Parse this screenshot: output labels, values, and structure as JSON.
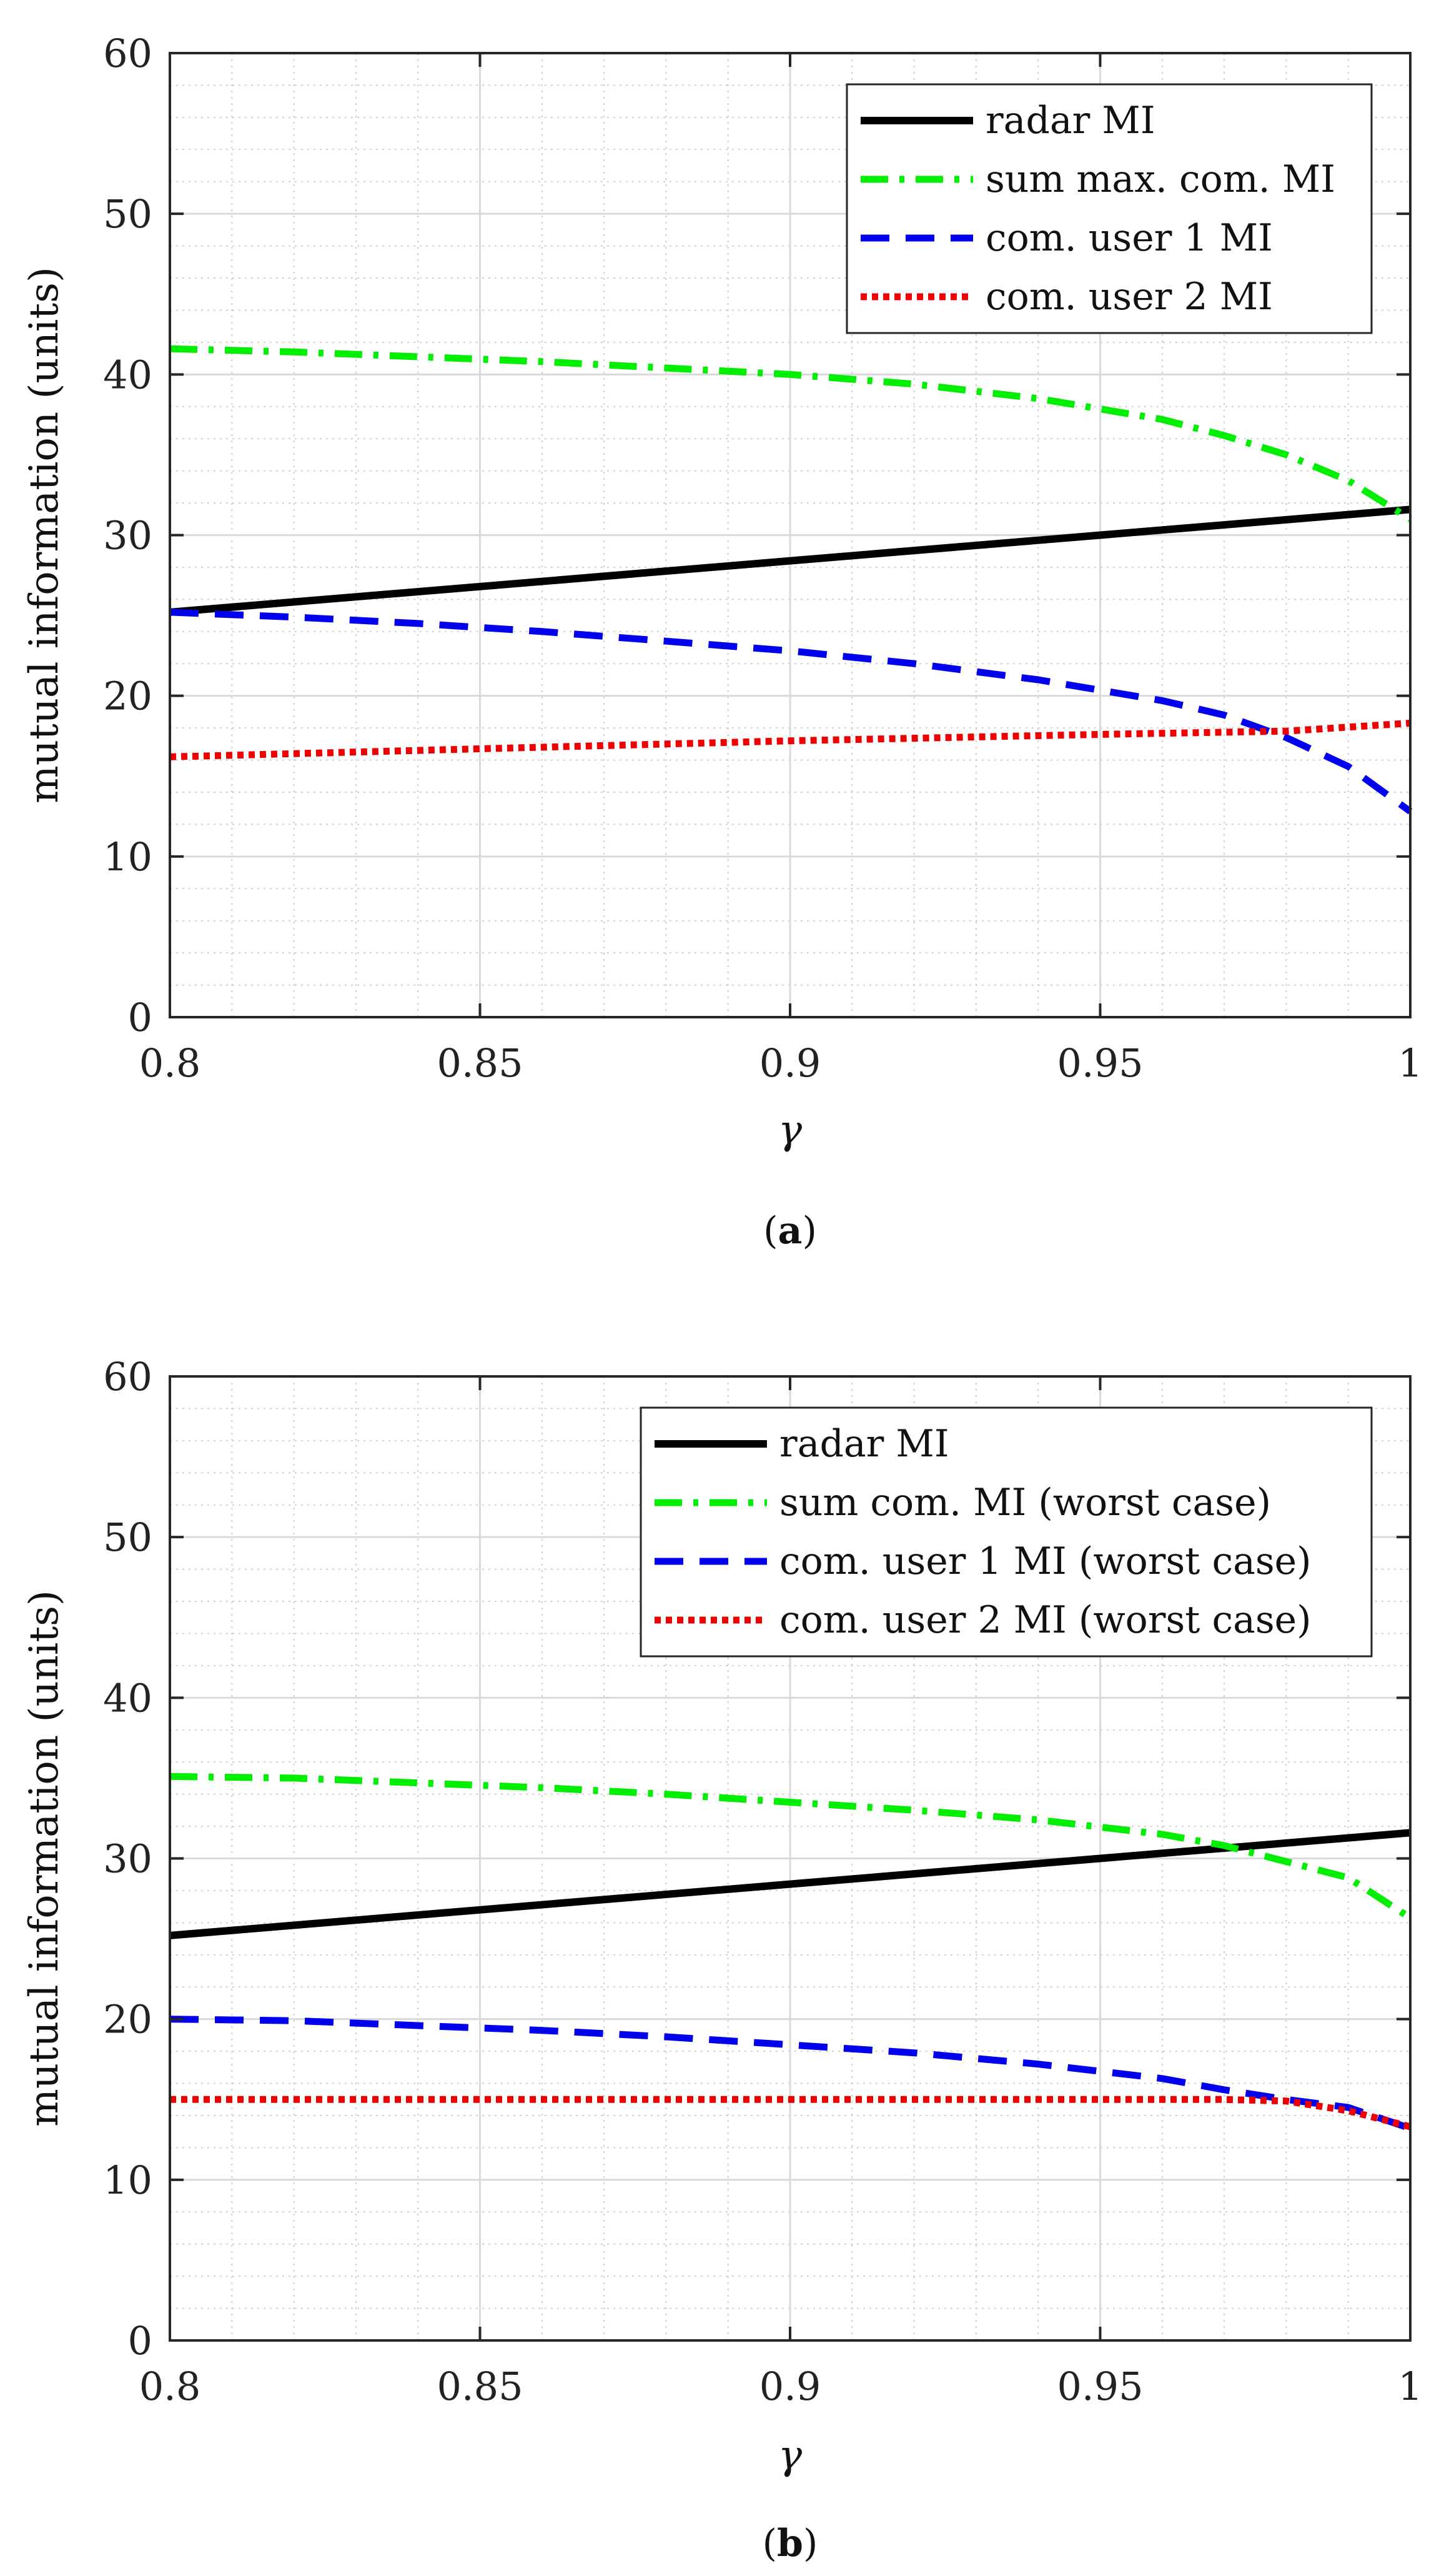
{
  "chart_data": [
    {
      "id": "a",
      "type": "line",
      "caption_open": "(",
      "caption_letter": "a",
      "caption_close": ")",
      "xlabel": "γ",
      "ylabel": "mutual information (units)",
      "xlim": [
        0.8,
        1.0
      ],
      "ylim": [
        0,
        60
      ],
      "xticks": [
        "0.8",
        "0.85",
        "0.9",
        "0.95",
        "1"
      ],
      "yticks": [
        "0",
        "10",
        "20",
        "30",
        "40",
        "50",
        "60"
      ],
      "grid": true,
      "legend_position": "top-right",
      "series": [
        {
          "name": "radar MI",
          "color": "#000000",
          "dash": "solid",
          "x": [
            0.8,
            0.85,
            0.9,
            0.95,
            1.0
          ],
          "y": [
            25.2,
            26.8,
            28.4,
            30.0,
            31.6
          ]
        },
        {
          "name": "sum max. com. MI",
          "color": "#00ee00",
          "dash": "dashdot",
          "x": [
            0.8,
            0.82,
            0.84,
            0.86,
            0.88,
            0.9,
            0.92,
            0.94,
            0.96,
            0.97,
            0.98,
            0.99,
            1.0
          ],
          "y": [
            41.6,
            41.4,
            41.1,
            40.8,
            40.4,
            40.0,
            39.4,
            38.5,
            37.2,
            36.2,
            35.0,
            33.4,
            31.0
          ]
        },
        {
          "name": "com. user 1 MI",
          "color": "#0000ee",
          "dash": "dashed",
          "x": [
            0.8,
            0.82,
            0.84,
            0.86,
            0.88,
            0.9,
            0.92,
            0.94,
            0.96,
            0.97,
            0.98,
            0.99,
            1.0
          ],
          "y": [
            25.2,
            24.9,
            24.5,
            24.0,
            23.4,
            22.8,
            22.0,
            21.0,
            19.7,
            18.8,
            17.4,
            15.6,
            12.8
          ]
        },
        {
          "name": "com. user 2 MI",
          "color": "#ee0000",
          "dash": "dotted",
          "x": [
            0.8,
            0.85,
            0.9,
            0.95,
            0.98,
            1.0
          ],
          "y": [
            16.2,
            16.7,
            17.2,
            17.6,
            17.8,
            18.3
          ]
        }
      ]
    },
    {
      "id": "b",
      "type": "line",
      "caption_open": "(",
      "caption_letter": "b",
      "caption_close": ")",
      "xlabel": "γ",
      "ylabel": "mutual information (units)",
      "xlim": [
        0.8,
        1.0
      ],
      "ylim": [
        0,
        60
      ],
      "xticks": [
        "0.8",
        "0.85",
        "0.9",
        "0.95",
        "1"
      ],
      "yticks": [
        "0",
        "10",
        "20",
        "30",
        "40",
        "50",
        "60"
      ],
      "grid": true,
      "legend_position": "top-right",
      "series": [
        {
          "name": "radar MI",
          "color": "#000000",
          "dash": "solid",
          "x": [
            0.8,
            0.85,
            0.9,
            0.95,
            1.0
          ],
          "y": [
            25.2,
            26.8,
            28.4,
            30.0,
            31.6
          ]
        },
        {
          "name": "sum com. MI (worst case)",
          "color": "#00ee00",
          "dash": "dashdot",
          "x": [
            0.8,
            0.82,
            0.84,
            0.86,
            0.88,
            0.9,
            0.92,
            0.94,
            0.96,
            0.97,
            0.98,
            0.99,
            1.0
          ],
          "y": [
            35.1,
            35.0,
            34.7,
            34.4,
            34.0,
            33.5,
            33.0,
            32.4,
            31.5,
            30.8,
            29.8,
            28.8,
            26.3
          ]
        },
        {
          "name": "com. user 1 MI (worst case)",
          "color": "#0000ee",
          "dash": "dashed",
          "x": [
            0.8,
            0.82,
            0.84,
            0.86,
            0.88,
            0.9,
            0.92,
            0.94,
            0.96,
            0.97,
            0.98,
            0.99,
            1.0
          ],
          "y": [
            20.0,
            19.9,
            19.6,
            19.3,
            18.9,
            18.4,
            17.9,
            17.2,
            16.3,
            15.6,
            15.0,
            14.5,
            13.2
          ]
        },
        {
          "name": "com. user 2 MI (worst case)",
          "color": "#ee0000",
          "dash": "dotted",
          "x": [
            0.8,
            0.85,
            0.9,
            0.95,
            0.97,
            0.98,
            0.99,
            1.0
          ],
          "y": [
            15.0,
            15.0,
            15.0,
            15.0,
            15.0,
            14.9,
            14.3,
            13.3
          ]
        }
      ]
    }
  ]
}
